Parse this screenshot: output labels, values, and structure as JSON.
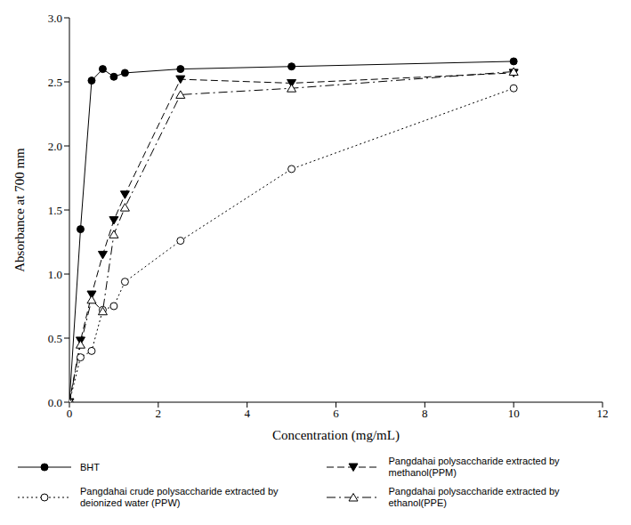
{
  "chart_data": {
    "type": "line",
    "x_label": "Concentration (mg/mL)",
    "y_label": "Absorbance at 700 mm",
    "x": [
      0,
      0.25,
      0.5,
      0.75,
      1,
      1.25,
      2.5,
      5,
      10
    ],
    "xlim": [
      0,
      12
    ],
    "xticks": [
      0,
      2,
      4,
      6,
      8,
      10,
      12
    ],
    "ylim": [
      0,
      3
    ],
    "yticks": [
      {
        "value": 0,
        "label": "0.0"
      },
      0.5,
      {
        "value": 1,
        "label": "1.0"
      },
      1.5,
      {
        "value": 2,
        "label": "2.0"
      },
      2.5,
      {
        "value": 3,
        "label": "3.0"
      }
    ],
    "grid": false,
    "legend": "bottom",
    "series": [
      {
        "name": "BHT",
        "color": "#000000",
        "marker": "filled_circle",
        "line_style": "solid",
        "values": [
          0,
          1.35,
          2.51,
          2.6,
          2.54,
          2.57,
          2.6,
          2.62,
          2.66
        ]
      },
      {
        "name": "Pangdahai polysaccharide extracted by methanol(PPM)",
        "color": "#000000",
        "marker": "filled_triangle_down",
        "line_style": "dashed",
        "values": [
          0,
          0.48,
          0.84,
          1.15,
          1.42,
          1.62,
          2.52,
          2.49,
          2.57
        ]
      },
      {
        "name": "Pangdahai crude polysaccharide extracted by deionized water (PPW)",
        "color": "#000000",
        "marker": "open_circle",
        "line_style": "dotted",
        "values": [
          0,
          0.35,
          0.4,
          0.72,
          0.75,
          0.94,
          1.26,
          1.82,
          2.45
        ]
      },
      {
        "name": "Pangdahai polysaccharide extracted by ethanol(PPE)",
        "color": "#000000",
        "marker": "open_triangle_up",
        "line_style": "dashdot",
        "values": [
          0,
          0.45,
          0.8,
          0.71,
          1.31,
          1.52,
          2.4,
          2.45,
          2.58
        ]
      }
    ]
  }
}
